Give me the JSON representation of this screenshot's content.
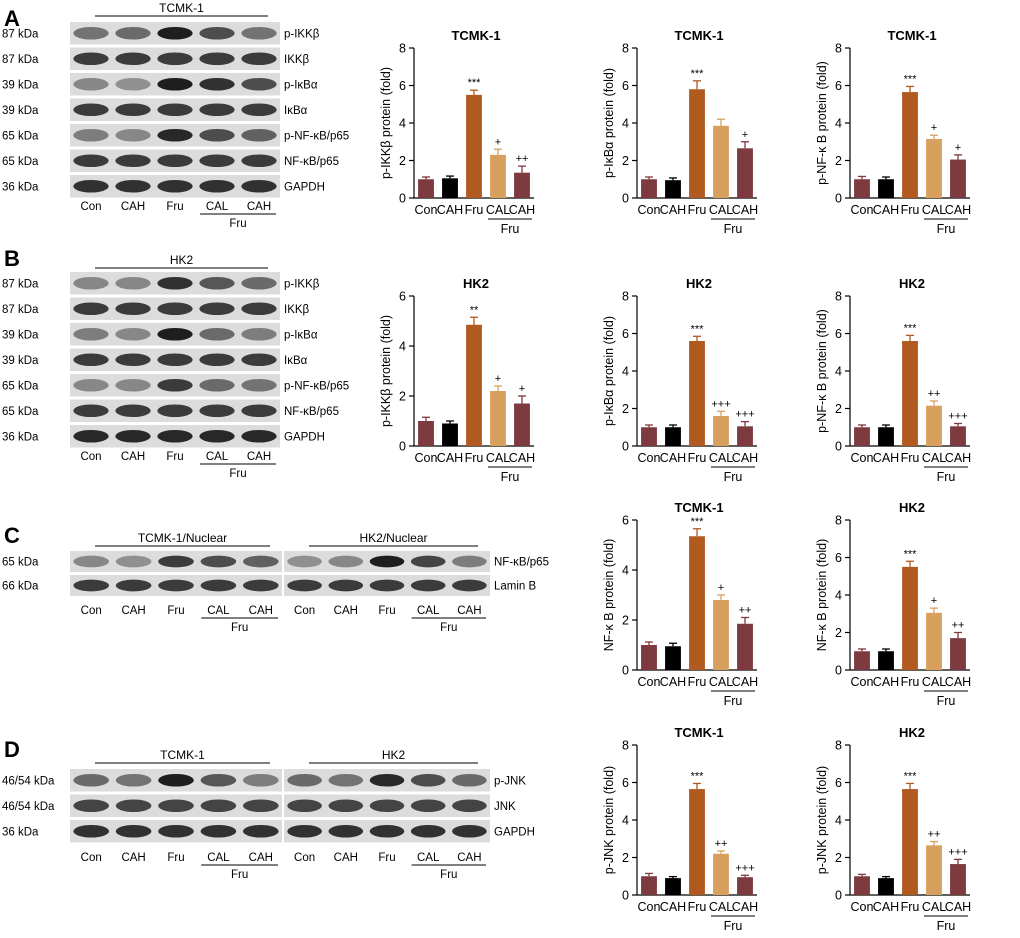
{
  "colors": {
    "con": "#7d3a3f",
    "cah": "#000000",
    "fru": "#b05a20",
    "cal_fru": "#d8a05e",
    "cah_fru": "#7d3a3f",
    "blot_bg": "#dcdcdc",
    "band": "#1e1e1e"
  },
  "panels": [
    {
      "letter": "A",
      "blots": [
        {
          "header": "TCMK-1",
          "lanes": [
            "Con",
            "CAH",
            "Fru",
            "CAL",
            "CAH"
          ],
          "group_label": "Fru",
          "rows": [
            {
              "kda": "87 kDa",
              "protein": "p-IKKβ",
              "intensities": [
                0.55,
                0.6,
                1.0,
                0.75,
                0.55
              ]
            },
            {
              "kda": "87 kDa",
              "protein": "IKKβ",
              "intensities": [
                0.85,
                0.85,
                0.85,
                0.85,
                0.85
              ]
            },
            {
              "kda": "39 kDa",
              "protein": "p-IκBα",
              "intensities": [
                0.45,
                0.4,
                1.0,
                0.9,
                0.75
              ]
            },
            {
              "kda": "39 kDa",
              "protein": "IκBα",
              "intensities": [
                0.85,
                0.85,
                0.85,
                0.85,
                0.85
              ]
            },
            {
              "kda": "65 kDa",
              "protein": "p-NF-κB/p65",
              "intensities": [
                0.5,
                0.45,
                0.95,
                0.75,
                0.65
              ]
            },
            {
              "kda": "65 kDa",
              "protein": "NF-κB/p65",
              "intensities": [
                0.85,
                0.85,
                0.85,
                0.85,
                0.85
              ]
            },
            {
              "kda": "36 kDa",
              "protein": "GAPDH",
              "intensities": [
                0.9,
                0.9,
                0.9,
                0.9,
                0.9
              ]
            }
          ]
        }
      ]
    },
    {
      "letter": "B",
      "blots": [
        {
          "header": "HK2",
          "lanes": [
            "Con",
            "CAH",
            "Fru",
            "CAL",
            "CAH"
          ],
          "group_label": "Fru",
          "rows": [
            {
              "kda": "87 kDa",
              "protein": "p-IKKβ",
              "intensities": [
                0.45,
                0.45,
                0.9,
                0.7,
                0.6
              ]
            },
            {
              "kda": "87 kDa",
              "protein": "IKKβ",
              "intensities": [
                0.85,
                0.85,
                0.85,
                0.85,
                0.85
              ]
            },
            {
              "kda": "39 kDa",
              "protein": "p-IκBα",
              "intensities": [
                0.5,
                0.45,
                1.0,
                0.6,
                0.5
              ]
            },
            {
              "kda": "39 kDa",
              "protein": "IκBα",
              "intensities": [
                0.85,
                0.85,
                0.85,
                0.85,
                0.85
              ]
            },
            {
              "kda": "65 kDa",
              "protein": "p-NF-κB/p65",
              "intensities": [
                0.45,
                0.45,
                0.85,
                0.6,
                0.55
              ]
            },
            {
              "kda": "65 kDa",
              "protein": "NF-κB/p65",
              "intensities": [
                0.85,
                0.85,
                0.85,
                0.85,
                0.85
              ]
            },
            {
              "kda": "36 kDa",
              "protein": "GAPDH",
              "intensities": [
                0.95,
                0.95,
                0.95,
                0.95,
                0.95
              ]
            }
          ]
        }
      ]
    },
    {
      "letter": "C",
      "blots": [
        {
          "header": "TCMK-1/Nuclear",
          "lanes": [
            "Con",
            "CAH",
            "Fru",
            "CAL",
            "CAH"
          ],
          "group_label": "Fru",
          "rows": [
            {
              "kda": "65 kDa",
              "protein": "",
              "intensities": [
                0.45,
                0.4,
                0.85,
                0.75,
                0.65
              ]
            },
            {
              "kda": "66 kDa",
              "protein": "",
              "intensities": [
                0.85,
                0.85,
                0.85,
                0.85,
                0.85
              ]
            }
          ]
        },
        {
          "header": "HK2/Nuclear",
          "lanes": [
            "Con",
            "CAH",
            "Fru",
            "CAL",
            "CAH"
          ],
          "group_label": "Fru",
          "rows": [
            {
              "kda": "",
              "protein": "NF-κB/p65",
              "intensities": [
                0.4,
                0.45,
                1.0,
                0.8,
                0.5
              ]
            },
            {
              "kda": "",
              "protein": "Lamin B",
              "intensities": [
                0.85,
                0.85,
                0.85,
                0.85,
                0.85
              ]
            }
          ]
        }
      ]
    },
    {
      "letter": "D",
      "blots": [
        {
          "header": "TCMK-1",
          "lanes": [
            "Con",
            "CAH",
            "Fru",
            "CAL",
            "CAH"
          ],
          "group_label": "Fru",
          "rows": [
            {
              "kda": "46/54 kDa",
              "protein": "",
              "intensities": [
                0.6,
                0.55,
                1.0,
                0.7,
                0.5
              ]
            },
            {
              "kda": "46/54 kDa",
              "protein": "",
              "intensities": [
                0.8,
                0.8,
                0.8,
                0.8,
                0.8
              ]
            },
            {
              "kda": "36 kDa",
              "protein": "",
              "intensities": [
                0.9,
                0.9,
                0.9,
                0.9,
                0.9
              ]
            }
          ]
        },
        {
          "header": "HK2",
          "lanes": [
            "Con",
            "CAH",
            "Fru",
            "CAL",
            "CAH"
          ],
          "group_label": "Fru",
          "rows": [
            {
              "kda": "",
              "protein": "p-JNK",
              "intensities": [
                0.6,
                0.55,
                0.95,
                0.75,
                0.6
              ]
            },
            {
              "kda": "",
              "protein": "JNK",
              "intensities": [
                0.8,
                0.8,
                0.8,
                0.8,
                0.8
              ]
            },
            {
              "kda": "",
              "protein": "GAPDH",
              "intensities": [
                0.9,
                0.9,
                0.9,
                0.9,
                0.9
              ]
            }
          ]
        }
      ]
    }
  ],
  "chart_data": [
    {
      "id": "A1",
      "type": "bar",
      "title": "TCMK-1",
      "ylabel": "p-IKKβ protein (fold)",
      "ylim": [
        0,
        8
      ],
      "yticks": [
        0,
        2,
        4,
        6,
        8
      ],
      "categories": [
        "Con",
        "CAH",
        "Fru",
        "CAL",
        "CAH"
      ],
      "group_label": "Fru",
      "values": [
        1.0,
        1.05,
        5.5,
        2.3,
        1.35
      ],
      "errors": [
        0.12,
        0.12,
        0.25,
        0.3,
        0.35
      ],
      "annotations": [
        "",
        "",
        "***",
        "+",
        "++"
      ]
    },
    {
      "id": "A2",
      "type": "bar",
      "title": "TCMK-1",
      "ylabel": "p-IκBα protein (fold)",
      "ylim": [
        0,
        8
      ],
      "yticks": [
        0,
        2,
        4,
        6,
        8
      ],
      "categories": [
        "Con",
        "CAH",
        "Fru",
        "CAL",
        "CAH"
      ],
      "group_label": "Fru",
      "values": [
        1.0,
        0.95,
        5.8,
        3.85,
        2.65
      ],
      "errors": [
        0.12,
        0.12,
        0.45,
        0.35,
        0.35
      ],
      "annotations": [
        "",
        "",
        "***",
        "",
        "+"
      ]
    },
    {
      "id": "A3",
      "type": "bar",
      "title": "TCMK-1",
      "ylabel": "p-NF-κ B protein (fold)",
      "ylim": [
        0,
        8
      ],
      "yticks": [
        0,
        2,
        4,
        6,
        8
      ],
      "categories": [
        "Con",
        "CAH",
        "Fru",
        "CAL",
        "CAH"
      ],
      "group_label": "Fru",
      "values": [
        1.0,
        1.0,
        5.65,
        3.15,
        2.05
      ],
      "errors": [
        0.15,
        0.12,
        0.3,
        0.2,
        0.25
      ],
      "annotations": [
        "",
        "",
        "***",
        "+",
        "+"
      ]
    },
    {
      "id": "B1",
      "type": "bar",
      "title": "HK2",
      "ylabel": "p-IKKβ protein (fold)",
      "ylim": [
        0,
        6
      ],
      "yticks": [
        0,
        2,
        4,
        6
      ],
      "categories": [
        "Con",
        "CAH",
        "Fru",
        "CAL",
        "CAH"
      ],
      "group_label": "Fru",
      "values": [
        1.0,
        0.9,
        4.85,
        2.2,
        1.7
      ],
      "errors": [
        0.15,
        0.1,
        0.3,
        0.2,
        0.3
      ],
      "annotations": [
        "",
        "",
        "**",
        "+",
        "+"
      ]
    },
    {
      "id": "B2",
      "type": "bar",
      "title": "HK2",
      "ylabel": "p-IκBα protein (fold)",
      "ylim": [
        0,
        8
      ],
      "yticks": [
        0,
        2,
        4,
        6,
        8
      ],
      "categories": [
        "Con",
        "CAH",
        "Fru",
        "CAL",
        "CAH"
      ],
      "group_label": "Fru",
      "values": [
        1.0,
        1.0,
        5.6,
        1.6,
        1.05
      ],
      "errors": [
        0.12,
        0.12,
        0.25,
        0.25,
        0.25
      ],
      "annotations": [
        "",
        "",
        "***",
        "+++",
        "+++"
      ]
    },
    {
      "id": "B3",
      "type": "bar",
      "title": "HK2",
      "ylabel": "p-NF-κ B protein (fold)",
      "ylim": [
        0,
        8
      ],
      "yticks": [
        0,
        2,
        4,
        6,
        8
      ],
      "categories": [
        "Con",
        "CAH",
        "Fru",
        "CAL",
        "CAH"
      ],
      "group_label": "Fru",
      "values": [
        1.0,
        1.0,
        5.6,
        2.15,
        1.05
      ],
      "errors": [
        0.12,
        0.12,
        0.3,
        0.25,
        0.15
      ],
      "annotations": [
        "",
        "",
        "***",
        "++",
        "+++"
      ]
    },
    {
      "id": "C1",
      "type": "bar",
      "title": "TCMK-1",
      "ylabel": "NF-κ B protein (fold)",
      "ylim": [
        0,
        6
      ],
      "yticks": [
        0,
        2,
        4,
        6
      ],
      "categories": [
        "Con",
        "CAH",
        "Fru",
        "CAL",
        "CAH"
      ],
      "group_label": "Fru",
      "values": [
        1.0,
        0.95,
        5.35,
        2.8,
        1.85
      ],
      "errors": [
        0.12,
        0.12,
        0.3,
        0.2,
        0.25
      ],
      "annotations": [
        "",
        "",
        "***",
        "+",
        "++"
      ]
    },
    {
      "id": "C2",
      "type": "bar",
      "title": "HK2",
      "ylabel": "NF-κ B protein (fold)",
      "ylim": [
        0,
        8
      ],
      "yticks": [
        0,
        2,
        4,
        6,
        8
      ],
      "categories": [
        "Con",
        "CAH",
        "Fru",
        "CAL",
        "CAH"
      ],
      "group_label": "Fru",
      "values": [
        1.0,
        1.0,
        5.5,
        3.05,
        1.7
      ],
      "errors": [
        0.12,
        0.12,
        0.3,
        0.25,
        0.3
      ],
      "annotations": [
        "",
        "",
        "***",
        "+",
        "++"
      ]
    },
    {
      "id": "D1",
      "type": "bar",
      "title": "TCMK-1",
      "ylabel": "p-JNK protein (fold)",
      "ylim": [
        0,
        8
      ],
      "yticks": [
        0,
        2,
        4,
        6,
        8
      ],
      "categories": [
        "Con",
        "CAH",
        "Fru",
        "CAL",
        "CAH"
      ],
      "group_label": "Fru",
      "values": [
        1.0,
        0.9,
        5.65,
        2.2,
        0.95
      ],
      "errors": [
        0.15,
        0.08,
        0.3,
        0.15,
        0.1
      ],
      "annotations": [
        "",
        "",
        "***",
        "++",
        "+++"
      ]
    },
    {
      "id": "D2",
      "type": "bar",
      "title": "HK2",
      "ylabel": "p-JNK protein (fold)",
      "ylim": [
        0,
        8
      ],
      "yticks": [
        0,
        2,
        4,
        6,
        8
      ],
      "categories": [
        "Con",
        "CAH",
        "Fru",
        "CAL",
        "CAH"
      ],
      "group_label": "Fru",
      "values": [
        1.0,
        0.9,
        5.65,
        2.65,
        1.65
      ],
      "errors": [
        0.1,
        0.08,
        0.3,
        0.2,
        0.25
      ],
      "annotations": [
        "",
        "",
        "***",
        "++",
        "+++"
      ]
    }
  ]
}
